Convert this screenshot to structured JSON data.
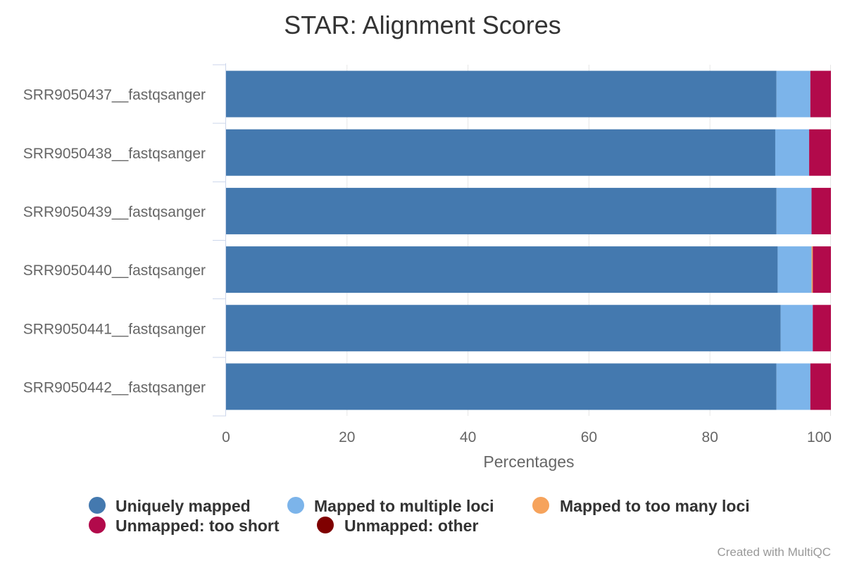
{
  "chart_data": {
    "type": "bar",
    "orientation": "horizontal",
    "stacked": true,
    "title": "STAR: Alignment Scores",
    "xlabel": "Percentages",
    "ylabel": "",
    "xlim": [
      0,
      100
    ],
    "x_ticks": [
      0,
      20,
      40,
      60,
      80,
      100
    ],
    "grid": true,
    "legend_position": "bottom",
    "categories": [
      "SRR9050437__fastqsanger",
      "SRR9050438__fastqsanger",
      "SRR9050439__fastqsanger",
      "SRR9050440__fastqsanger",
      "SRR9050441__fastqsanger",
      "SRR9050442__fastqsanger"
    ],
    "series": [
      {
        "name": "Uniquely mapped",
        "color": "#4479af",
        "values": [
          91.0,
          90.8,
          91.0,
          91.2,
          91.7,
          91.0
        ]
      },
      {
        "name": "Mapped to multiple loci",
        "color": "#7cb4ea",
        "values": [
          5.6,
          5.6,
          5.8,
          5.6,
          5.3,
          5.6
        ]
      },
      {
        "name": "Mapped to too many loci",
        "color": "#f6a35c",
        "values": [
          0.0,
          0.0,
          0.0,
          0.2,
          0.0,
          0.0
        ]
      },
      {
        "name": "Unmapped: too short",
        "color": "#b20a4b",
        "values": [
          3.4,
          3.6,
          3.2,
          3.0,
          3.0,
          3.4
        ]
      },
      {
        "name": "Unmapped: other",
        "color": "#7f0000",
        "values": [
          0.0,
          0.0,
          0.0,
          0.0,
          0.0,
          0.0
        ]
      }
    ],
    "credit": "Created with MultiQC"
  }
}
